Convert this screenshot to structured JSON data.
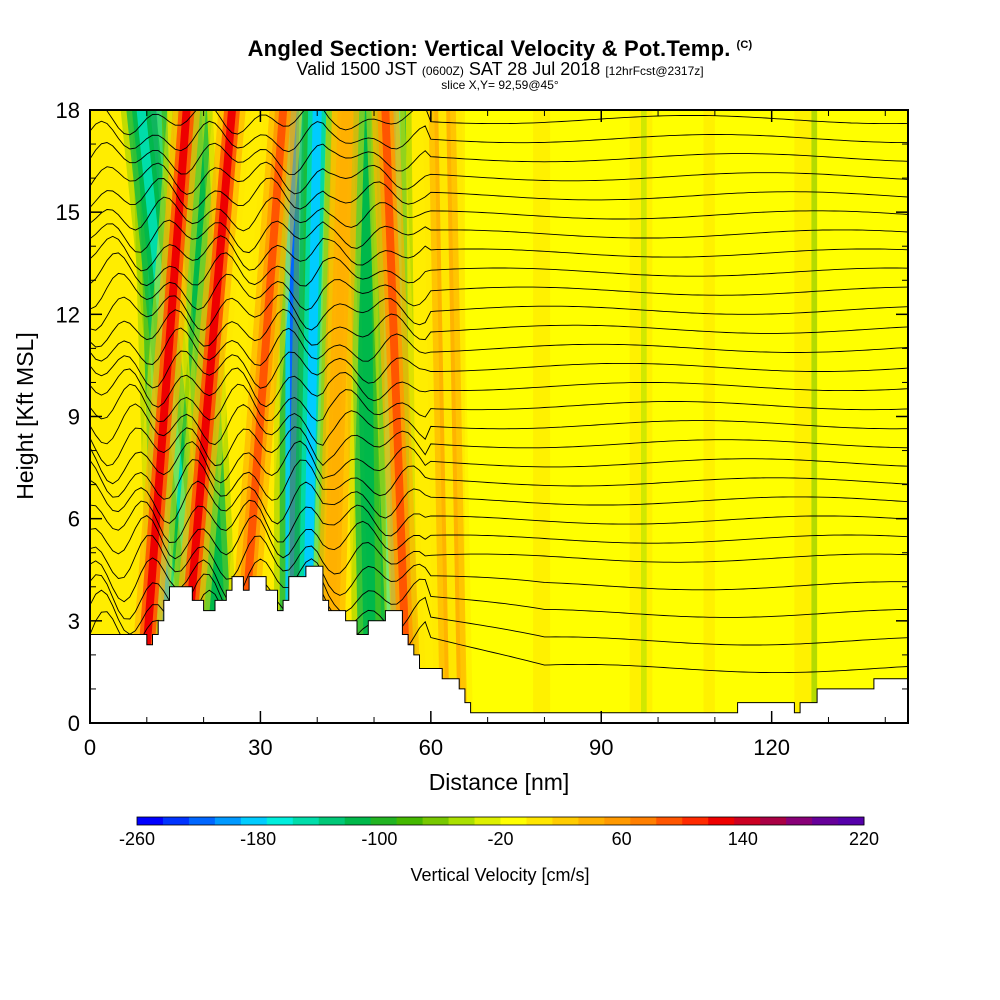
{
  "header": {
    "title": "Angled Section: Vertical Velocity & Pot.Temp.",
    "title_units": "(C)",
    "valid_prefix": "Valid 1500 JST",
    "valid_utc": "(0600Z)",
    "valid_date": "SAT 28 Jul 2018",
    "forecast": "[12hrFcst@2317z]",
    "slice": "slice X,Y= 92,59@45°"
  },
  "chart_data": {
    "type": "heatmap",
    "title": "Angled Section: Vertical Velocity & Pot.Temp.",
    "xlabel": "Distance [nm]",
    "ylabel": "Height [Kft MSL]",
    "xlim": [
      0,
      144
    ],
    "ylim": [
      0,
      18
    ],
    "x_ticks": [
      "0",
      "30",
      "60",
      "90",
      "120"
    ],
    "x_tick_values": [
      0,
      30,
      60,
      90,
      120
    ],
    "y_ticks": [
      "0",
      "3",
      "6",
      "9",
      "12",
      "15",
      "18"
    ],
    "y_tick_values": [
      0,
      3,
      6,
      9,
      12,
      15,
      18
    ],
    "colorbar": {
      "title": "Vertical Velocity [cm/s]",
      "labels": [
        "-260",
        "-180",
        "-100",
        "-20",
        "60",
        "140",
        "220"
      ],
      "label_values": [
        -260,
        -180,
        -100,
        -20,
        60,
        140,
        220
      ],
      "range": [
        -260,
        220
      ],
      "step": 20,
      "colors": [
        "#0000ff",
        "#0033ff",
        "#0066ff",
        "#0099ff",
        "#00ccff",
        "#00eedd",
        "#00ddaa",
        "#00c877",
        "#00b84a",
        "#22b422",
        "#44b800",
        "#77c800",
        "#aae000",
        "#ddf000",
        "#ffff00",
        "#ffe600",
        "#ffcc00",
        "#ffb000",
        "#ff9900",
        "#ff7f00",
        "#ff5500",
        "#ff2a00",
        "#ee0000",
        "#cc0022",
        "#aa0044",
        "#880077",
        "#660099",
        "#5500aa"
      ]
    },
    "terrain_kft": [
      [
        0,
        2.6
      ],
      [
        10,
        2.6
      ],
      [
        10,
        2.3
      ],
      [
        11,
        2.3
      ],
      [
        11,
        2.6
      ],
      [
        12,
        2.6
      ],
      [
        12,
        3.0
      ],
      [
        13,
        3.0
      ],
      [
        13,
        3.6
      ],
      [
        14,
        3.6
      ],
      [
        14,
        4.0
      ],
      [
        18,
        4.0
      ],
      [
        18,
        3.6
      ],
      [
        20,
        3.6
      ],
      [
        20,
        3.3
      ],
      [
        22,
        3.3
      ],
      [
        22,
        3.6
      ],
      [
        24,
        3.6
      ],
      [
        24,
        3.9
      ],
      [
        25,
        3.9
      ],
      [
        25,
        4.3
      ],
      [
        27,
        4.3
      ],
      [
        27,
        3.9
      ],
      [
        28,
        3.9
      ],
      [
        28,
        4.3
      ],
      [
        31,
        4.3
      ],
      [
        31,
        3.9
      ],
      [
        33,
        3.9
      ],
      [
        33,
        3.3
      ],
      [
        34,
        3.3
      ],
      [
        34,
        3.6
      ],
      [
        35,
        3.6
      ],
      [
        35,
        4.3
      ],
      [
        38,
        4.3
      ],
      [
        38,
        4.6
      ],
      [
        41,
        4.6
      ],
      [
        41,
        3.6
      ],
      [
        42,
        3.6
      ],
      [
        42,
        3.3
      ],
      [
        45,
        3.3
      ],
      [
        45,
        3.0
      ],
      [
        47,
        3.0
      ],
      [
        47,
        2.6
      ],
      [
        49,
        2.6
      ],
      [
        49,
        3.0
      ],
      [
        52,
        3.0
      ],
      [
        52,
        3.3
      ],
      [
        55,
        3.3
      ],
      [
        55,
        2.6
      ],
      [
        56,
        2.6
      ],
      [
        56,
        2.3
      ],
      [
        57,
        2.3
      ],
      [
        57,
        2.0
      ],
      [
        58,
        2.0
      ],
      [
        58,
        1.6
      ],
      [
        62,
        1.6
      ],
      [
        62,
        1.3
      ],
      [
        65,
        1.3
      ],
      [
        65,
        1.0
      ],
      [
        66,
        1.0
      ],
      [
        66,
        0.6
      ],
      [
        67,
        0.6
      ],
      [
        67,
        0.3
      ],
      [
        114,
        0.3
      ],
      [
        114,
        0.6
      ],
      [
        124,
        0.6
      ],
      [
        124,
        0.3
      ],
      [
        125,
        0.3
      ],
      [
        125,
        0.6
      ],
      [
        128,
        0.6
      ],
      [
        128,
        1.0
      ],
      [
        138,
        1.0
      ],
      [
        138,
        1.3
      ],
      [
        144,
        1.3
      ]
    ],
    "updraft_bands": [
      {
        "x_base": 9,
        "x_top": 17,
        "speed_cm_s": 180
      },
      {
        "x_base": 16,
        "x_top": 25,
        "speed_cm_s": 180
      },
      {
        "x_base": 26,
        "x_top": 34,
        "speed_cm_s": 140
      },
      {
        "x_base": 42,
        "x_top": 45,
        "speed_cm_s": 80
      },
      {
        "x_base": 56,
        "x_top": 52,
        "speed_cm_s": 140
      },
      {
        "x_base": 64,
        "x_top": 62,
        "speed_cm_s": 40
      }
    ],
    "downdraft_bands": [
      {
        "x_base": 14,
        "x_top": 11,
        "speed_cm_s": -200
      },
      {
        "x_base": 20,
        "x_top": 9,
        "speed_cm_s": -140
      },
      {
        "x_base": 23,
        "x_top": 18,
        "speed_cm_s": -100
      },
      {
        "x_base": 36,
        "x_top": 36,
        "speed_cm_s": -220
      },
      {
        "x_base": 38,
        "x_top": 40,
        "speed_cm_s": -180
      },
      {
        "x_base": 50,
        "x_top": 48,
        "speed_cm_s": -100
      },
      {
        "x_base": 54,
        "x_top": 53,
        "speed_cm_s": -200
      }
    ],
    "isentrope_count": 28,
    "isentrope_base_kft": 2.6,
    "isentrope_spacing_kft": 0.56
  }
}
